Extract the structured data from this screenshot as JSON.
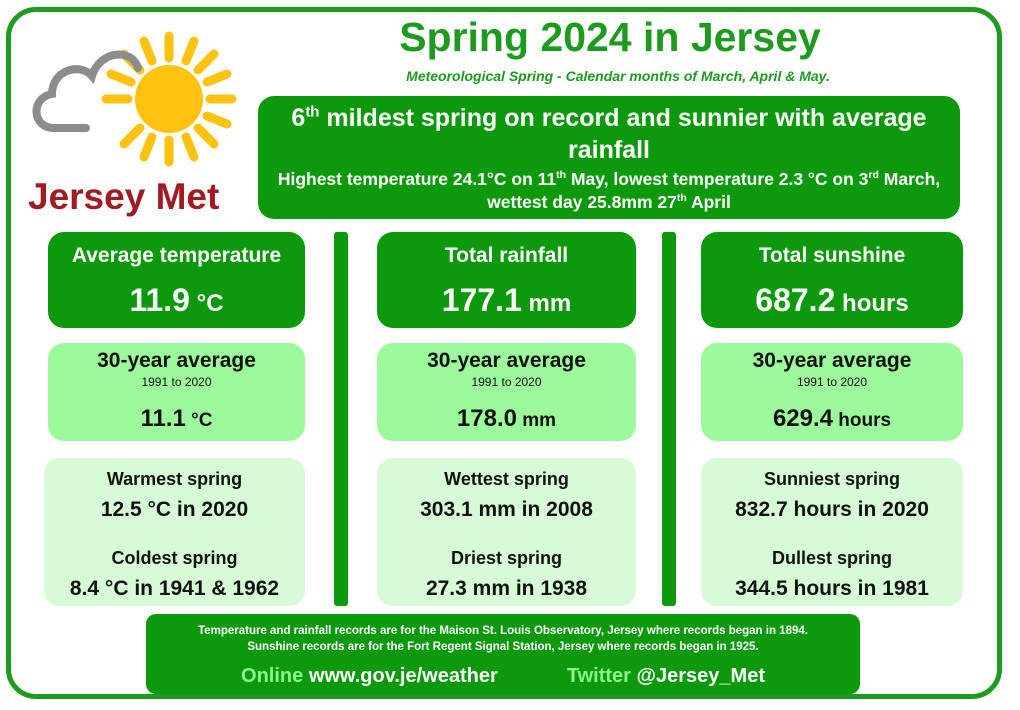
{
  "header": {
    "title": "Spring 2024 in Jersey",
    "subtitle": "Meteorological  Spring  -  Calendar months of March, April & May."
  },
  "brand": {
    "name": "Jersey Met",
    "logo_icon": "cloud-sun-icon",
    "sun_color": "#ffc20e",
    "cloud_color": "#8c8c8c",
    "brand_color": "#a01c22"
  },
  "headline": {
    "line1_a": "6",
    "line1_sup": "th",
    "line1_b": " mildest spring on record and sunnier with average rainfall",
    "line2_a": "Highest temperature 24.1°C on 11",
    "line2_sup1": "th",
    "line2_b": " May, lowest temperature 2.3 °C on 3",
    "line2_sup2": "rd",
    "line2_c": " March, wettest day 25.8mm 27",
    "line2_sup3": "th",
    "line2_d": " April"
  },
  "columns": [
    {
      "title": "Average temperature",
      "value": "11.9",
      "unit": " °C",
      "avg_label": "30-year average",
      "avg_period": "1991 to 2020",
      "avg_value": "11.1",
      "avg_unit": " °C",
      "rec1_label": "Warmest spring",
      "rec1_value": "12.5 °C in 2020",
      "rec2_label": "Coldest spring",
      "rec2_value": "8.4 °C in 1941 & 1962"
    },
    {
      "title": "Total rainfall",
      "value": "177.1",
      "unit": " mm",
      "avg_label": "30-year average",
      "avg_period": "1991 to 2020",
      "avg_value": "178.0",
      "avg_unit": " mm",
      "rec1_label": "Wettest spring",
      "rec1_value": "303.1 mm in 2008",
      "rec2_label": "Driest spring",
      "rec2_value": "27.3 mm in 1938"
    },
    {
      "title": "Total sunshine",
      "value": "687.2",
      "unit": " hours",
      "avg_label": "30-year average",
      "avg_period": "1991 to 2020",
      "avg_value": "629.4",
      "avg_unit": " hours",
      "rec1_label": "Sunniest spring",
      "rec1_value": "832.7 hours in 2020",
      "rec2_label": "Dullest spring",
      "rec2_value": "344.5 hours in 1981"
    }
  ],
  "footer": {
    "note1": "Temperature and rainfall records are for the Maison St. Louis Observatory, Jersey where records began in 1894.",
    "note2": "Sunshine records are for the Fort Regent Signal Station, Jersey where records began in 1925.",
    "online_label": "Online",
    "online_url": "www.gov.je/weather",
    "twitter_label": "Twitter",
    "twitter_handle": "@Jersey_Met"
  },
  "colors": {
    "dark_green": "#0c9a0c",
    "mid_green": "#9cfa9c",
    "light_green": "#d6fbd6",
    "title_green": "#1e9a1e"
  }
}
